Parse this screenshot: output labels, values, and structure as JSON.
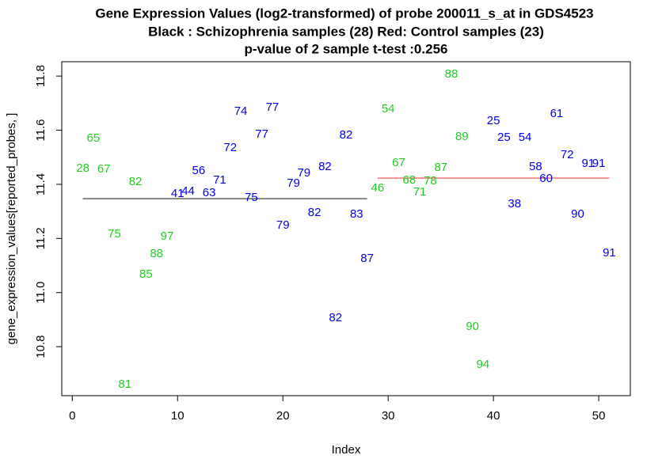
{
  "chart_data": {
    "type": "scatter",
    "title": [
      "Gene Expression Values (log2-transformed) of probe 200011_s_at in GDS4523",
      "Black : Schizophrenia samples (28)    Red: Control samples (23)",
      "p-value of 2 sample t-test :0.256"
    ],
    "xlabel": "Index",
    "ylabel": "gene_expression_values[reported_probes, ]",
    "x": [
      1,
      2,
      3,
      4,
      5,
      6,
      7,
      8,
      9,
      10,
      11,
      12,
      13,
      14,
      15,
      16,
      17,
      18,
      19,
      20,
      21,
      22,
      23,
      24,
      25,
      26,
      27,
      28,
      29,
      30,
      31,
      32,
      33,
      34,
      35,
      36,
      37,
      38,
      39,
      40,
      41,
      42,
      43,
      44,
      45,
      46,
      47,
      48,
      49,
      50,
      51
    ],
    "values": [
      11.458,
      11.569,
      11.455,
      11.215,
      10.66,
      11.408,
      11.066,
      11.142,
      11.206,
      11.364,
      11.373,
      11.449,
      11.367,
      11.414,
      11.534,
      11.668,
      11.35,
      11.584,
      11.683,
      11.247,
      11.402,
      11.44,
      11.294,
      11.464,
      10.905,
      11.581,
      11.288,
      11.125,
      11.385,
      11.677,
      11.478,
      11.414,
      11.37,
      11.411,
      11.461,
      11.806,
      11.575,
      10.873,
      10.733,
      11.633,
      11.572,
      11.326,
      11.572,
      11.464,
      11.42,
      11.66,
      11.508,
      11.288,
      11.475,
      11.475,
      11.145
    ],
    "labels": [
      "28",
      "65",
      "67",
      "75",
      "81",
      "82",
      "85",
      "88",
      "97",
      "41",
      "44",
      "56",
      "63",
      "71",
      "72",
      "74",
      "75",
      "77",
      "77",
      "79",
      "79",
      "79",
      "82",
      "82",
      "82",
      "82",
      "83",
      "87",
      "46",
      "54",
      "67",
      "68",
      "71",
      "78",
      "87",
      "88",
      "89",
      "90",
      "94",
      "25",
      "25",
      "38",
      "54",
      "58",
      "60",
      "61",
      "72",
      "90",
      "91",
      "91",
      "91"
    ],
    "colors": [
      "#22cc22",
      "#22cc22",
      "#22cc22",
      "#22cc22",
      "#22cc22",
      "#22cc22",
      "#22cc22",
      "#22cc22",
      "#22cc22",
      "#0000ee",
      "#0000ee",
      "#0000ee",
      "#0000ee",
      "#0000ee",
      "#0000ee",
      "#0000ee",
      "#0000ee",
      "#0000ee",
      "#0000ee",
      "#0000ee",
      "#0000ee",
      "#0000ee",
      "#0000ee",
      "#0000ee",
      "#0000ee",
      "#0000ee",
      "#0000ee",
      "#0000ee",
      "#22cc22",
      "#22cc22",
      "#22cc22",
      "#22cc22",
      "#22cc22",
      "#22cc22",
      "#22cc22",
      "#22cc22",
      "#22cc22",
      "#22cc22",
      "#22cc22",
      "#0000ee",
      "#0000ee",
      "#0000ee",
      "#0000ee",
      "#0000ee",
      "#0000ee",
      "#0000ee",
      "#0000ee",
      "#0000ee",
      "#0000ee",
      "#0000ee",
      "#0000ee"
    ],
    "mean_lines": [
      {
        "color": "#555555",
        "x": [
          1,
          28
        ],
        "value": 11.347
      },
      {
        "color": "#ff6666",
        "x": [
          29,
          51
        ],
        "value": 11.423
      }
    ],
    "xlim": [
      -1,
      53
    ],
    "ylim": [
      10.619,
      11.853
    ],
    "xticks": [
      0,
      10,
      20,
      30,
      40,
      50
    ],
    "yticks": [
      10.8,
      {
        "value": 11,
        "label": "11.0"
      },
      11.2,
      11.4,
      11.6,
      11.8
    ]
  }
}
